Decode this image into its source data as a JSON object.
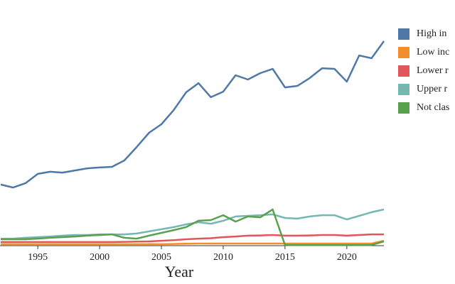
{
  "chart_data": {
    "type": "line",
    "x_label": "Year",
    "x": [
      1992,
      1993,
      1994,
      1995,
      1996,
      1997,
      1998,
      1999,
      2000,
      2001,
      2002,
      2003,
      2004,
      2005,
      2006,
      2007,
      2008,
      2009,
      2010,
      2011,
      2012,
      2013,
      2014,
      2015,
      2016,
      2017,
      2018,
      2019,
      2020,
      2021,
      2022,
      2023
    ],
    "xlim": [
      1992,
      2023
    ],
    "xticks": [
      1995,
      2000,
      2005,
      2010,
      2015,
      2020
    ],
    "ylim": [
      0,
      100
    ],
    "series": [
      {
        "name": "High in",
        "color": "#4e79a7",
        "values": [
          28.7,
          27.3,
          29.3,
          33.7,
          34.7,
          34.3,
          35.3,
          36.3,
          36.7,
          37,
          40,
          46.3,
          53,
          57,
          63.7,
          72,
          76.3,
          69.7,
          72.3,
          80,
          78,
          81,
          83,
          74.3,
          75,
          78.7,
          83.3,
          83,
          77,
          89.3,
          88,
          96
        ]
      },
      {
        "name": "Low inc",
        "color": "#f28e2b",
        "values": [
          0.7,
          0.7,
          0.7,
          0.7,
          0.7,
          0.7,
          0.7,
          0.7,
          0.7,
          0.7,
          0.7,
          0.7,
          0.7,
          0.7,
          0.8,
          0.9,
          1,
          1,
          1,
          1,
          1,
          1,
          1,
          1,
          1,
          1,
          1,
          1,
          1,
          1,
          1,
          2.3
        ]
      },
      {
        "name": "Lower r",
        "color": "#e15759",
        "values": [
          1.7,
          1.7,
          1.7,
          1.7,
          1.7,
          1.7,
          1.7,
          1.7,
          1.7,
          1.7,
          1.8,
          1.9,
          2,
          2.3,
          2.6,
          3,
          3.3,
          3.5,
          4,
          4.3,
          4.7,
          4.8,
          5,
          4.7,
          4.7,
          4.8,
          5,
          5,
          4.7,
          5,
          5.3,
          5.3
        ]
      },
      {
        "name": "Upper r",
        "color": "#76b7b2",
        "values": [
          3.3,
          3.3,
          3.7,
          4,
          4.3,
          4.7,
          5,
          5,
          5.3,
          5.3,
          5.3,
          5.7,
          6.7,
          7.7,
          8.7,
          10,
          11,
          10.3,
          11.7,
          13.7,
          14,
          14.3,
          14.7,
          13,
          12.7,
          13.7,
          14.3,
          14.3,
          12.3,
          14,
          15.7,
          17
        ]
      },
      {
        "name": "Not clas",
        "color": "#59a14f",
        "values": [
          3,
          3,
          3,
          3.3,
          3.7,
          4,
          4.3,
          4.7,
          5,
          5.3,
          3.7,
          3.3,
          4.7,
          6,
          7.3,
          8.7,
          11.7,
          12,
          14.3,
          11.3,
          13.7,
          13.3,
          17,
          0.3,
          0.3,
          0.3,
          0.3,
          0.3,
          0.3,
          0.3,
          0.3,
          2
        ]
      }
    ]
  }
}
